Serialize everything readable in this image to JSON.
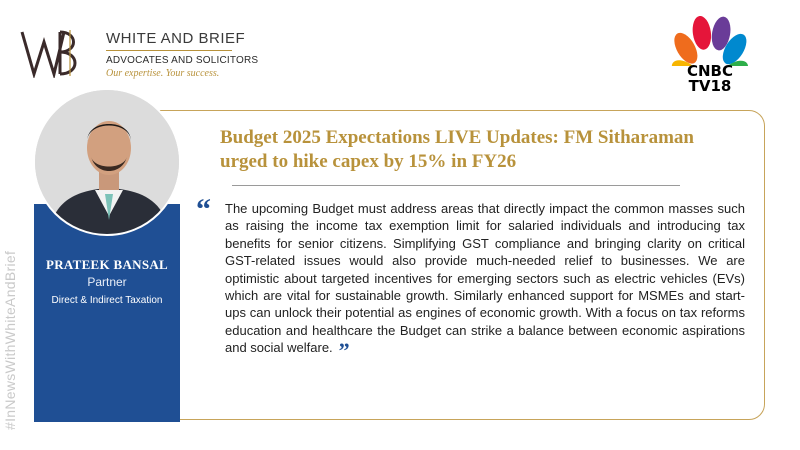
{
  "brand": {
    "title": "WHITE AND BRIEF",
    "subtitle": "ADVOCATES AND SOLICITORS",
    "tagline": "Our expertise. Your success.",
    "mark_icon": "wb-monogram-icon"
  },
  "media": {
    "name": "CNBC",
    "channel": "TV18",
    "logo_icon": "cnbc-peacock-icon"
  },
  "hashtag": "#InNewsWithWhiteAndBrief",
  "person": {
    "name": "PRATEEK BANSAL",
    "role": "Partner",
    "department": "Direct & Indirect Taxation"
  },
  "headline": "Budget 2025 Expectations LIVE Updates: FM Sitharaman urged to hike capex by 15% in FY26",
  "quote": {
    "open_mark": "“",
    "text": "The upcoming Budget must address areas that directly impact the common masses such as raising the income tax exemption limit for salaried individuals and introducing tax benefits for senior citizens. Simplifying GST compliance and bringing clarity on critical GST-related issues would also provide much-needed relief to businesses. We are optimistic about targeted incentives for emerging sectors such as electric vehicles (EVs) which are vital for sustainable growth. Similarly enhanced support for MSMEs and start-ups can unlock their potential as engines of economic growth. With a focus on tax reforms education and healthcare the Budget can strike a balance between economic aspirations and social welfare.",
    "close_mark": "”"
  },
  "colors": {
    "gold": "#b8923b",
    "blue": "#1f4f94",
    "text": "#222222"
  }
}
